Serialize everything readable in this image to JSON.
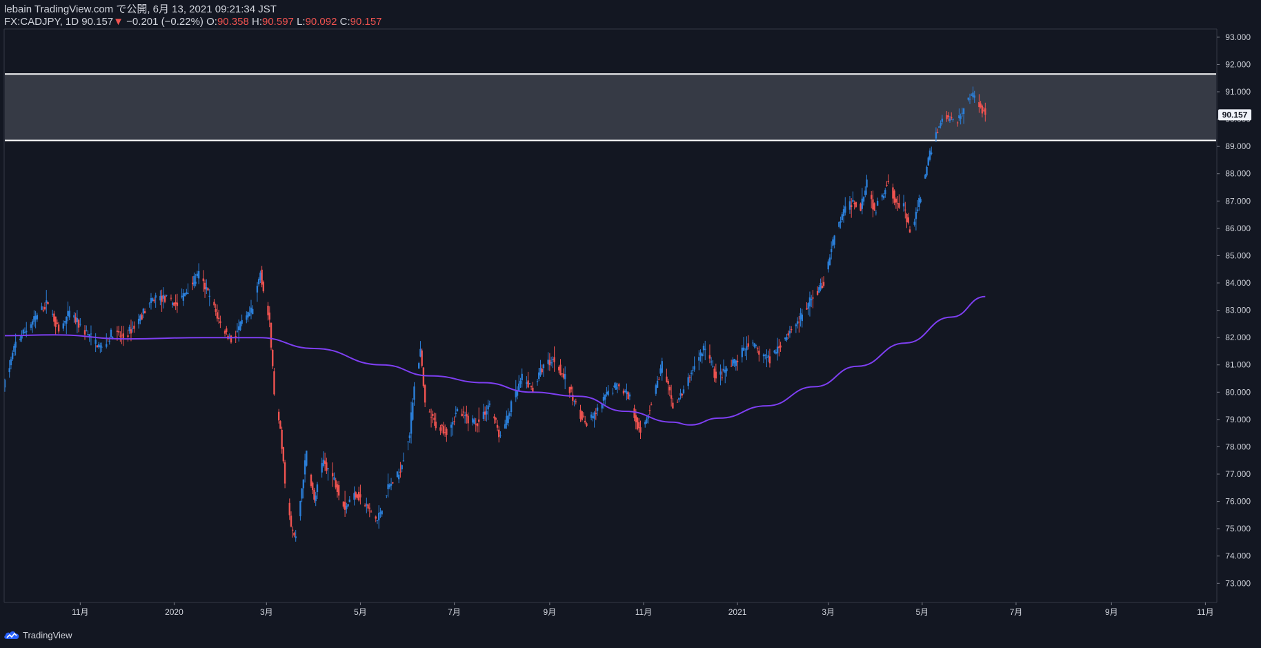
{
  "header": {
    "publisher": "lebain TradingView.com で公開, 6月 13, 2021 09:21:34 JST",
    "symbol_line": "FX:CADJPY, 1D 90.157",
    "change_arrow": "▼",
    "change": "−0.201 (−0.22%)",
    "o_label": "O:",
    "o_value": "90.358",
    "h_label": "H:",
    "h_value": "90.597",
    "l_label": "L:",
    "l_value": "90.092",
    "c_label": "C:",
    "c_value": "90.157"
  },
  "footer": {
    "brand": "TradingView"
  },
  "colors": {
    "background": "#131722",
    "up": "#2b7fd9",
    "down": "#ef5350",
    "ma": "#7e3ff2",
    "zone_fill": "#363a45",
    "zone_line": "#ffffff",
    "text": "#d1d4dc",
    "price_badge": "#f0f3fa"
  },
  "chart_data": {
    "type": "candlestick",
    "symbol": "FX:CADJPY",
    "interval": "1D",
    "last_price_label": "90.157",
    "y_axis": {
      "min": 72.3,
      "max": 93.3,
      "ticks": [
        "93.000",
        "92.000",
        "91.000",
        "90.000",
        "89.000",
        "88.000",
        "87.000",
        "86.000",
        "85.000",
        "84.000",
        "83.000",
        "82.000",
        "81.000",
        "80.000",
        "79.000",
        "78.000",
        "77.000",
        "76.000",
        "75.000",
        "74.000",
        "73.000"
      ],
      "tick_values": [
        93,
        92,
        91,
        90,
        89,
        88,
        87,
        86,
        85,
        84,
        83,
        82,
        81,
        80,
        79,
        78,
        77,
        76,
        75,
        74,
        73
      ]
    },
    "x_axis": {
      "start": "2019-09-13",
      "end": "2021-11-08",
      "ticks": [
        {
          "label": "11月",
          "date": "2019-11-01"
        },
        {
          "label": "2020",
          "date": "2020-01-01"
        },
        {
          "label": "3月",
          "date": "2020-03-01"
        },
        {
          "label": "5月",
          "date": "2020-05-01"
        },
        {
          "label": "7月",
          "date": "2020-07-01"
        },
        {
          "label": "9月",
          "date": "2020-09-01"
        },
        {
          "label": "11月",
          "date": "2020-11-01"
        },
        {
          "label": "2021",
          "date": "2021-01-01"
        },
        {
          "label": "3月",
          "date": "2021-03-01"
        },
        {
          "label": "5月",
          "date": "2021-05-01"
        },
        {
          "label": "7月",
          "date": "2021-07-01"
        },
        {
          "label": "9月",
          "date": "2021-09-01"
        },
        {
          "label": "11月",
          "date": "2021-11-01"
        }
      ]
    },
    "resistance_zone": {
      "upper": 91.65,
      "lower": 89.22
    },
    "price_path": [
      {
        "date": "2019-09-13",
        "value": 80.3
      },
      {
        "date": "2019-09-20",
        "value": 81.8
      },
      {
        "date": "2019-09-27",
        "value": 82.3
      },
      {
        "date": "2019-10-04",
        "value": 82.8
      },
      {
        "date": "2019-10-11",
        "value": 83.3
      },
      {
        "date": "2019-10-18",
        "value": 82.2
      },
      {
        "date": "2019-10-25",
        "value": 82.9
      },
      {
        "date": "2019-11-01",
        "value": 82.4
      },
      {
        "date": "2019-11-08",
        "value": 82.0
      },
      {
        "date": "2019-11-15",
        "value": 81.6
      },
      {
        "date": "2019-11-22",
        "value": 82.2
      },
      {
        "date": "2019-11-29",
        "value": 82.0
      },
      {
        "date": "2019-12-06",
        "value": 82.4
      },
      {
        "date": "2019-12-13",
        "value": 83.0
      },
      {
        "date": "2019-12-20",
        "value": 83.5
      },
      {
        "date": "2019-12-27",
        "value": 83.4
      },
      {
        "date": "2020-01-03",
        "value": 83.2
      },
      {
        "date": "2020-01-10",
        "value": 83.8
      },
      {
        "date": "2020-01-17",
        "value": 84.3
      },
      {
        "date": "2020-01-24",
        "value": 83.5
      },
      {
        "date": "2020-01-31",
        "value": 82.5
      },
      {
        "date": "2020-02-07",
        "value": 81.9
      },
      {
        "date": "2020-02-14",
        "value": 82.5
      },
      {
        "date": "2020-02-21",
        "value": 83.0
      },
      {
        "date": "2020-02-26",
        "value": 84.4
      },
      {
        "date": "2020-03-03",
        "value": 82.5
      },
      {
        "date": "2020-03-06",
        "value": 80.0
      },
      {
        "date": "2020-03-10",
        "value": 78.5
      },
      {
        "date": "2020-03-13",
        "value": 76.8
      },
      {
        "date": "2020-03-17",
        "value": 75.0
      },
      {
        "date": "2020-03-20",
        "value": 74.6
      },
      {
        "date": "2020-03-24",
        "value": 76.5
      },
      {
        "date": "2020-03-27",
        "value": 77.8
      },
      {
        "date": "2020-04-01",
        "value": 76.0
      },
      {
        "date": "2020-04-07",
        "value": 77.5
      },
      {
        "date": "2020-04-14",
        "value": 76.8
      },
      {
        "date": "2020-04-21",
        "value": 75.8
      },
      {
        "date": "2020-04-28",
        "value": 76.3
      },
      {
        "date": "2020-05-05",
        "value": 75.8
      },
      {
        "date": "2020-05-12",
        "value": 75.3
      },
      {
        "date": "2020-05-19",
        "value": 76.5
      },
      {
        "date": "2020-05-26",
        "value": 77.0
      },
      {
        "date": "2020-06-02",
        "value": 78.5
      },
      {
        "date": "2020-06-05",
        "value": 80.3
      },
      {
        "date": "2020-06-09",
        "value": 81.5
      },
      {
        "date": "2020-06-12",
        "value": 79.5
      },
      {
        "date": "2020-06-19",
        "value": 78.8
      },
      {
        "date": "2020-06-26",
        "value": 78.6
      },
      {
        "date": "2020-07-03",
        "value": 79.3
      },
      {
        "date": "2020-07-10",
        "value": 79.0
      },
      {
        "date": "2020-07-17",
        "value": 78.9
      },
      {
        "date": "2020-07-24",
        "value": 79.6
      },
      {
        "date": "2020-07-31",
        "value": 78.3
      },
      {
        "date": "2020-08-07",
        "value": 79.5
      },
      {
        "date": "2020-08-14",
        "value": 80.5
      },
      {
        "date": "2020-08-21",
        "value": 80.1
      },
      {
        "date": "2020-08-28",
        "value": 81.0
      },
      {
        "date": "2020-09-04",
        "value": 81.2
      },
      {
        "date": "2020-09-11",
        "value": 80.5
      },
      {
        "date": "2020-09-18",
        "value": 79.5
      },
      {
        "date": "2020-09-25",
        "value": 78.8
      },
      {
        "date": "2020-10-02",
        "value": 79.3
      },
      {
        "date": "2020-10-09",
        "value": 80.0
      },
      {
        "date": "2020-10-16",
        "value": 80.3
      },
      {
        "date": "2020-10-23",
        "value": 79.8
      },
      {
        "date": "2020-10-30",
        "value": 78.4
      },
      {
        "date": "2020-11-06",
        "value": 79.6
      },
      {
        "date": "2020-11-13",
        "value": 81.0
      },
      {
        "date": "2020-11-20",
        "value": 79.5
      },
      {
        "date": "2020-11-27",
        "value": 80.0
      },
      {
        "date": "2020-12-04",
        "value": 81.0
      },
      {
        "date": "2020-12-11",
        "value": 81.7
      },
      {
        "date": "2020-12-18",
        "value": 80.5
      },
      {
        "date": "2020-12-25",
        "value": 80.8
      },
      {
        "date": "2021-01-01",
        "value": 81.2
      },
      {
        "date": "2021-01-08",
        "value": 81.8
      },
      {
        "date": "2021-01-15",
        "value": 81.5
      },
      {
        "date": "2021-01-22",
        "value": 81.2
      },
      {
        "date": "2021-01-29",
        "value": 81.8
      },
      {
        "date": "2021-02-05",
        "value": 82.3
      },
      {
        "date": "2021-02-12",
        "value": 82.8
      },
      {
        "date": "2021-02-19",
        "value": 83.5
      },
      {
        "date": "2021-02-26",
        "value": 84.0
      },
      {
        "date": "2021-03-03",
        "value": 85.3
      },
      {
        "date": "2021-03-10",
        "value": 86.5
      },
      {
        "date": "2021-03-17",
        "value": 87.0
      },
      {
        "date": "2021-03-22",
        "value": 86.8
      },
      {
        "date": "2021-03-26",
        "value": 87.8
      },
      {
        "date": "2021-03-31",
        "value": 86.6
      },
      {
        "date": "2021-04-05",
        "value": 87.2
      },
      {
        "date": "2021-04-09",
        "value": 87.8
      },
      {
        "date": "2021-04-14",
        "value": 86.9
      },
      {
        "date": "2021-04-19",
        "value": 86.8
      },
      {
        "date": "2021-04-23",
        "value": 85.8
      },
      {
        "date": "2021-04-28",
        "value": 86.7
      },
      {
        "date": "2021-05-03",
        "value": 88.0
      },
      {
        "date": "2021-05-07",
        "value": 88.9
      },
      {
        "date": "2021-05-12",
        "value": 89.8
      },
      {
        "date": "2021-05-17",
        "value": 90.1
      },
      {
        "date": "2021-05-21",
        "value": 89.9
      },
      {
        "date": "2021-05-26",
        "value": 90.1
      },
      {
        "date": "2021-05-31",
        "value": 90.8
      },
      {
        "date": "2021-06-03",
        "value": 90.9
      },
      {
        "date": "2021-06-07",
        "value": 90.6
      },
      {
        "date": "2021-06-11",
        "value": 90.157
      }
    ],
    "ma_line": [
      {
        "date": "2019-09-13",
        "value": 82.07
      },
      {
        "date": "2019-10-15",
        "value": 82.1
      },
      {
        "date": "2019-12-01",
        "value": 81.95
      },
      {
        "date": "2020-01-20",
        "value": 82.0
      },
      {
        "date": "2020-02-25",
        "value": 82.0
      },
      {
        "date": "2020-04-01",
        "value": 81.6
      },
      {
        "date": "2020-05-15",
        "value": 81.0
      },
      {
        "date": "2020-06-15",
        "value": 80.6
      },
      {
        "date": "2020-07-20",
        "value": 80.35
      },
      {
        "date": "2020-08-20",
        "value": 80.0
      },
      {
        "date": "2020-09-20",
        "value": 79.85
      },
      {
        "date": "2020-10-20",
        "value": 79.3
      },
      {
        "date": "2020-11-20",
        "value": 78.9
      },
      {
        "date": "2020-12-01",
        "value": 78.8
      },
      {
        "date": "2020-12-20",
        "value": 79.05
      },
      {
        "date": "2021-01-20",
        "value": 79.5
      },
      {
        "date": "2021-02-20",
        "value": 80.2
      },
      {
        "date": "2021-03-20",
        "value": 80.95
      },
      {
        "date": "2021-04-20",
        "value": 81.8
      },
      {
        "date": "2021-05-20",
        "value": 82.75
      },
      {
        "date": "2021-06-11",
        "value": 83.5
      }
    ]
  }
}
